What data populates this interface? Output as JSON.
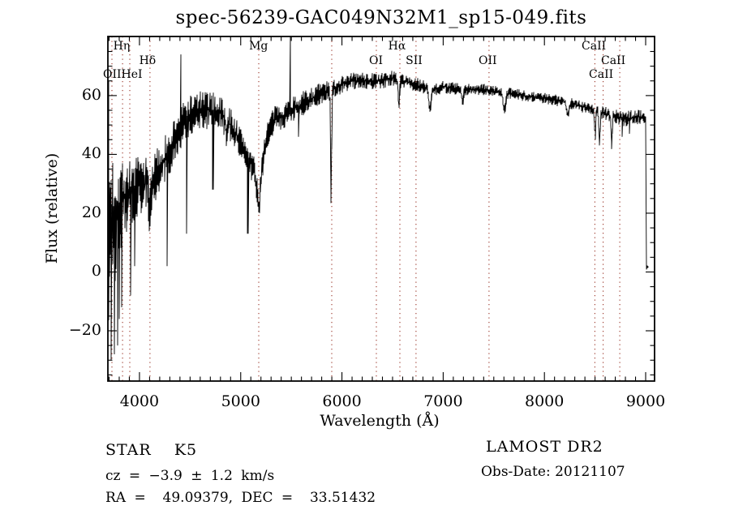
{
  "title": "spec-56239-GAC049N32M1_sp15-049.fits",
  "annotations": {
    "star_class": "STAR    K5",
    "cz": "cz = −3.9 ± 1.2 km/s",
    "ra_dec": "RA =  49.09379, DEC =  33.51432",
    "survey": "LAMOST DR2",
    "obs_date": "Obs-Date: 20121107"
  },
  "chart_data": {
    "type": "line",
    "title": "spec-56239-GAC049N32M1_sp15-049.fits",
    "xlabel": "Wavelength (Å)",
    "ylabel": "Flux (relative)",
    "xlim": [
      3688,
      9088
    ],
    "ylim": [
      -37.1,
      80.1
    ],
    "x_major_ticks": [
      4000,
      5000,
      6000,
      7000,
      8000,
      9000
    ],
    "x_minor_step": 100,
    "y_major_ticks": [
      -20,
      0,
      20,
      40,
      60
    ],
    "y_minor_step": 5,
    "grid": false,
    "line_color": "#000000",
    "marker_line_color": "#993326",
    "spectral_lines": [
      {
        "wavelength": 3728
      },
      {
        "wavelength": 3833
      },
      {
        "wavelength": 3904
      },
      {
        "wavelength": 4104
      },
      {
        "wavelength": 5178
      },
      {
        "wavelength": 5899
      },
      {
        "wavelength": 6340
      },
      {
        "wavelength": 6572
      },
      {
        "wavelength": 6732
      },
      {
        "wavelength": 7453
      },
      {
        "wavelength": 8498
      },
      {
        "wavelength": 8580
      },
      {
        "wavelength": 8744
      }
    ],
    "line_labels": [
      {
        "text": "Hη",
        "x_wl": 3824,
        "row": 1
      },
      {
        "text": "Mg",
        "x_wl": 5176,
        "row": 1
      },
      {
        "text": "Hα",
        "x_wl": 6544,
        "row": 1
      },
      {
        "text": "CaII",
        "x_wl": 8488,
        "row": 1
      },
      {
        "text": "Hδ",
        "x_wl": 4080,
        "row": 2
      },
      {
        "text": "OI",
        "x_wl": 6336,
        "row": 2
      },
      {
        "text": "SII",
        "x_wl": 6712,
        "row": 2
      },
      {
        "text": "OII",
        "x_wl": 7440,
        "row": 2
      },
      {
        "text": "CaII",
        "x_wl": 8680,
        "row": 2
      },
      {
        "text": "OIIHeI",
        "x_wl": 3640,
        "row": 3,
        "align": "left"
      },
      {
        "text": "CaII",
        "x_wl": 8560,
        "row": 3
      }
    ],
    "spectrum_range": [
      3690,
      9020
    ],
    "seed": 7,
    "continuum": [
      [
        3690,
        8
      ],
      [
        3700,
        12
      ],
      [
        3730,
        16
      ],
      [
        3770,
        20
      ],
      [
        3820,
        24
      ],
      [
        3870,
        26
      ],
      [
        3920,
        27
      ],
      [
        3980,
        29
      ],
      [
        4040,
        30
      ],
      [
        4100,
        30
      ],
      [
        4160,
        33
      ],
      [
        4220,
        36
      ],
      [
        4280,
        40
      ],
      [
        4340,
        45
      ],
      [
        4400,
        49
      ],
      [
        4460,
        52
      ],
      [
        4520,
        54
      ],
      [
        4600,
        55
      ],
      [
        4700,
        55
      ],
      [
        4800,
        54
      ],
      [
        4860,
        52
      ],
      [
        4920,
        49
      ],
      [
        4980,
        45
      ],
      [
        5040,
        41
      ],
      [
        5100,
        37
      ],
      [
        5150,
        32
      ],
      [
        5180,
        29
      ],
      [
        5210,
        36
      ],
      [
        5250,
        45
      ],
      [
        5300,
        50
      ],
      [
        5350,
        52
      ],
      [
        5400,
        53
      ],
      [
        5500,
        55
      ],
      [
        5600,
        57
      ],
      [
        5700,
        59
      ],
      [
        5800,
        61
      ],
      [
        5900,
        62
      ],
      [
        6000,
        64
      ],
      [
        6100,
        65
      ],
      [
        6250,
        65
      ],
      [
        6400,
        65
      ],
      [
        6500,
        66
      ],
      [
        6600,
        65
      ],
      [
        6800,
        63
      ],
      [
        6900,
        62
      ],
      [
        7000,
        63
      ],
      [
        7200,
        62
      ],
      [
        7400,
        62
      ],
      [
        7600,
        61
      ],
      [
        7800,
        60
      ],
      [
        8000,
        59
      ],
      [
        8200,
        58
      ],
      [
        8400,
        56
      ],
      [
        8600,
        54
      ],
      [
        8800,
        52
      ],
      [
        8950,
        53
      ],
      [
        9002,
        52
      ],
      [
        9005,
        1.5
      ],
      [
        9020,
        1.5
      ]
    ],
    "noise_amp": [
      [
        3690,
        42
      ],
      [
        3700,
        36
      ],
      [
        3720,
        30
      ],
      [
        3750,
        24
      ],
      [
        3800,
        17
      ],
      [
        3850,
        14
      ],
      [
        3900,
        12
      ],
      [
        4000,
        10
      ],
      [
        4100,
        9
      ],
      [
        4200,
        8.5
      ],
      [
        4300,
        8
      ],
      [
        4400,
        7.5
      ],
      [
        4500,
        7
      ],
      [
        4700,
        6.5
      ],
      [
        4900,
        6
      ],
      [
        5100,
        5.5
      ],
      [
        5300,
        5
      ],
      [
        5500,
        4.5
      ],
      [
        5700,
        4
      ],
      [
        5900,
        3.5
      ],
      [
        6100,
        3
      ],
      [
        6300,
        2.8
      ],
      [
        6600,
        2.6
      ],
      [
        7000,
        2.2
      ],
      [
        7400,
        2
      ],
      [
        7800,
        1.9
      ],
      [
        8200,
        2
      ],
      [
        8500,
        2.3
      ],
      [
        8800,
        2.6
      ],
      [
        8990,
        2.8
      ],
      [
        9003,
        1
      ],
      [
        9020,
        0.7
      ]
    ],
    "absorption_features": [
      {
        "wl": 4101,
        "depth": 8,
        "width": 10
      },
      {
        "wl": 4305,
        "depth": 5,
        "width": 10
      },
      {
        "wl": 4861,
        "depth": 7,
        "width": 10
      },
      {
        "wl": 5178,
        "depth": 8,
        "width": 14
      },
      {
        "wl": 5893,
        "depth": 40,
        "width": 5
      },
      {
        "wl": 6563,
        "depth": 9,
        "width": 7
      },
      {
        "wl": 6870,
        "depth": 7,
        "width": 10
      },
      {
        "wl": 7190,
        "depth": 4,
        "width": 10
      },
      {
        "wl": 7605,
        "depth": 6,
        "width": 12
      },
      {
        "wl": 8230,
        "depth": 4,
        "width": 12
      },
      {
        "wl": 8500,
        "depth": 9,
        "width": 6
      },
      {
        "wl": 8545,
        "depth": 11,
        "width": 6
      },
      {
        "wl": 8665,
        "depth": 10,
        "width": 6
      }
    ],
    "up_spikes": [
      {
        "wl": 3691,
        "v": 55
      },
      {
        "wl": 3694,
        "v": 65
      },
      {
        "wl": 4408,
        "v": 74
      },
      {
        "wl": 5492,
        "v": 80
      }
    ],
    "down_spikes": [
      {
        "wl": 3691,
        "v": -35
      },
      {
        "wl": 3720,
        "v": -30
      },
      {
        "wl": 3751,
        "v": -28
      },
      {
        "wl": 3784,
        "v": -25
      },
      {
        "wl": 3800,
        "v": -16
      },
      {
        "wl": 3824,
        "v": -12
      },
      {
        "wl": 3910,
        "v": -8
      },
      {
        "wl": 3952,
        "v": 2
      },
      {
        "wl": 4270,
        "v": 2
      },
      {
        "wl": 4465,
        "v": 13
      },
      {
        "wl": 4725,
        "v": 28
      },
      {
        "wl": 5070,
        "v": 13
      },
      {
        "wl": 5570,
        "v": 46
      },
      {
        "wl": 8770,
        "v": 46
      },
      {
        "wl": 8840,
        "v": 47
      }
    ]
  }
}
